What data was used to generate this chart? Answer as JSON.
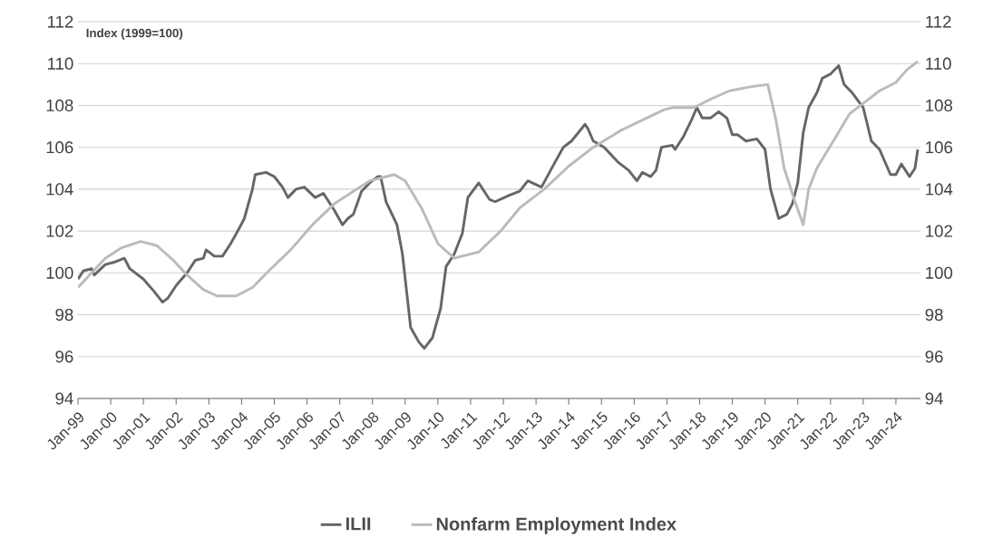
{
  "chart_data": {
    "type": "line",
    "ylabel": "Index (1999=100)",
    "xlim": [
      "1999-01",
      "2024-10"
    ],
    "xticks": [
      {
        "value": "1999-01",
        "label": "Jan-99"
      },
      {
        "value": "2000-01",
        "label": "Jan-00"
      },
      {
        "value": "2001-01",
        "label": "Jan-01"
      },
      {
        "value": "2002-01",
        "label": "Jan-02"
      },
      {
        "value": "2003-01",
        "label": "Jan-03"
      },
      {
        "value": "2004-01",
        "label": "Jan-04"
      },
      {
        "value": "2005-01",
        "label": "Jan-05"
      },
      {
        "value": "2006-01",
        "label": "Jan-06"
      },
      {
        "value": "2007-01",
        "label": "Jan-07"
      },
      {
        "value": "2008-01",
        "label": "Jan-08"
      },
      {
        "value": "2009-01",
        "label": "Jan-09"
      },
      {
        "value": "2010-01",
        "label": "Jan-10"
      },
      {
        "value": "2011-01",
        "label": "Jan-11"
      },
      {
        "value": "2012-01",
        "label": "Jan-12"
      },
      {
        "value": "2013-01",
        "label": "Jan-13"
      },
      {
        "value": "2014-01",
        "label": "Jan-14"
      },
      {
        "value": "2015-01",
        "label": "Jan-15"
      },
      {
        "value": "2016-01",
        "label": "Jan-16"
      },
      {
        "value": "2017-01",
        "label": "Jan-17"
      },
      {
        "value": "2018-01",
        "label": "Jan-18"
      },
      {
        "value": "2019-01",
        "label": "Jan-19"
      },
      {
        "value": "2020-01",
        "label": "Jan-20"
      },
      {
        "value": "2021-01",
        "label": "Jan-21"
      },
      {
        "value": "2022-01",
        "label": "Jan-22"
      },
      {
        "value": "2023-01",
        "label": "Jan-23"
      },
      {
        "value": "2024-01",
        "label": "Jan-24"
      }
    ],
    "ylim": [
      94,
      112
    ],
    "yticks": [
      94,
      96,
      98,
      100,
      102,
      104,
      106,
      108,
      110,
      112
    ],
    "y2lim": [
      94,
      112
    ],
    "y2ticks": [
      94,
      96,
      98,
      100,
      102,
      104,
      106,
      108,
      110,
      112
    ],
    "grid": "y",
    "legend": "bottom",
    "marker": "none",
    "line_style": "solid",
    "series": [
      {
        "name": "ILII",
        "color": "#666666",
        "x": [
          "1999-01",
          "1999-03",
          "1999-06",
          "1999-07",
          "1999-11",
          "2000-02",
          "2000-06",
          "2000-08",
          "2001-01",
          "2001-05",
          "2001-08",
          "2001-10",
          "2002-01",
          "2002-05",
          "2002-08",
          "2002-11",
          "2002-12",
          "2003-03",
          "2003-06",
          "2003-09",
          "2003-12",
          "2004-02",
          "2004-05",
          "2004-06",
          "2004-10",
          "2005-01",
          "2005-04",
          "2005-06",
          "2005-09",
          "2005-12",
          "2006-04",
          "2006-07",
          "2006-11",
          "2007-02",
          "2007-04",
          "2007-06",
          "2007-09",
          "2007-12",
          "2008-03",
          "2008-04",
          "2008-06",
          "2008-10",
          "2008-12",
          "2009-03",
          "2009-06",
          "2009-08",
          "2009-11",
          "2010-02",
          "2010-04",
          "2010-07",
          "2010-10",
          "2010-12",
          "2011-04",
          "2011-06",
          "2011-08",
          "2011-10",
          "2012-03",
          "2012-07",
          "2012-10",
          "2013-03",
          "2013-08",
          "2013-11",
          "2014-02",
          "2014-07",
          "2014-08",
          "2014-10",
          "2015-02",
          "2015-07",
          "2015-11",
          "2016-02",
          "2016-04",
          "2016-07",
          "2016-09",
          "2016-11",
          "2017-03",
          "2017-04",
          "2017-07",
          "2017-10",
          "2017-12",
          "2018-02",
          "2018-05",
          "2018-08",
          "2018-11",
          "2019-01",
          "2019-03",
          "2019-06",
          "2019-10",
          "2020-01",
          "2020-03",
          "2020-06",
          "2020-09",
          "2020-11",
          "2021-01",
          "2021-03",
          "2021-05",
          "2021-08",
          "2021-10",
          "2022-01",
          "2022-04",
          "2022-06",
          "2022-09",
          "2023-01",
          "2023-04",
          "2023-07",
          "2023-11",
          "2024-01",
          "2024-03",
          "2024-06",
          "2024-08",
          "2024-09"
        ],
        "values": [
          99.7,
          100.1,
          100.2,
          99.9,
          100.4,
          100.5,
          100.7,
          100.2,
          99.7,
          99.1,
          98.6,
          98.8,
          99.4,
          100.0,
          100.6,
          100.7,
          101.1,
          100.8,
          100.8,
          101.4,
          102.1,
          102.6,
          104.0,
          104.7,
          104.8,
          104.6,
          104.1,
          103.6,
          104.0,
          104.1,
          103.6,
          103.8,
          103.0,
          102.3,
          102.6,
          102.8,
          103.9,
          104.3,
          104.6,
          104.6,
          103.4,
          102.3,
          100.9,
          97.4,
          96.7,
          96.4,
          96.9,
          98.3,
          100.3,
          100.9,
          101.9,
          103.6,
          104.3,
          103.9,
          103.5,
          103.4,
          103.7,
          103.9,
          104.4,
          104.1,
          105.3,
          106.0,
          106.3,
          107.1,
          106.9,
          106.3,
          106.0,
          105.3,
          104.9,
          104.4,
          104.8,
          104.6,
          104.9,
          106.0,
          106.1,
          105.9,
          106.5,
          107.3,
          107.9,
          107.4,
          107.4,
          107.7,
          107.4,
          106.6,
          106.6,
          106.3,
          106.4,
          105.9,
          104.0,
          102.6,
          102.8,
          103.3,
          104.3,
          106.7,
          107.9,
          108.6,
          109.3,
          109.5,
          109.9,
          109.0,
          108.6,
          107.9,
          106.3,
          105.9,
          104.7,
          104.7,
          105.2,
          104.6,
          105.0,
          105.9
        ]
      },
      {
        "name": "Nonfarm Employment Index",
        "color": "#bbbbbb",
        "x": [
          "1999-01",
          "1999-06",
          "1999-11",
          "2000-05",
          "2000-12",
          "2001-06",
          "2001-12",
          "2002-05",
          "2002-11",
          "2003-04",
          "2003-11",
          "2004-05",
          "2004-11",
          "2005-07",
          "2006-03",
          "2006-11",
          "2007-06",
          "2007-12",
          "2008-09",
          "2009-01",
          "2009-07",
          "2010-01",
          "2010-07",
          "2011-04",
          "2011-12",
          "2012-07",
          "2013-04",
          "2014-01",
          "2014-10",
          "2015-08",
          "2016-04",
          "2016-12",
          "2017-03",
          "2017-11",
          "2018-05",
          "2018-12",
          "2019-08",
          "2020-02",
          "2020-05",
          "2020-08",
          "2020-12",
          "2021-03",
          "2021-05",
          "2021-08",
          "2022-03",
          "2022-08",
          "2023-02",
          "2023-07",
          "2024-01",
          "2024-05",
          "2024-09"
        ],
        "values": [
          99.3,
          100.0,
          100.7,
          101.2,
          101.5,
          101.3,
          100.6,
          99.9,
          99.2,
          98.9,
          98.9,
          99.3,
          100.1,
          101.1,
          102.3,
          103.3,
          103.9,
          104.4,
          104.7,
          104.4,
          103.1,
          101.4,
          100.7,
          101.0,
          102.0,
          103.1,
          104.0,
          105.1,
          106.0,
          106.8,
          107.3,
          107.8,
          107.9,
          107.9,
          108.3,
          108.7,
          108.9,
          109.0,
          107.3,
          105.0,
          103.4,
          102.3,
          104.0,
          105.0,
          106.5,
          107.6,
          108.2,
          108.7,
          109.1,
          109.7,
          110.1
        ]
      }
    ]
  }
}
